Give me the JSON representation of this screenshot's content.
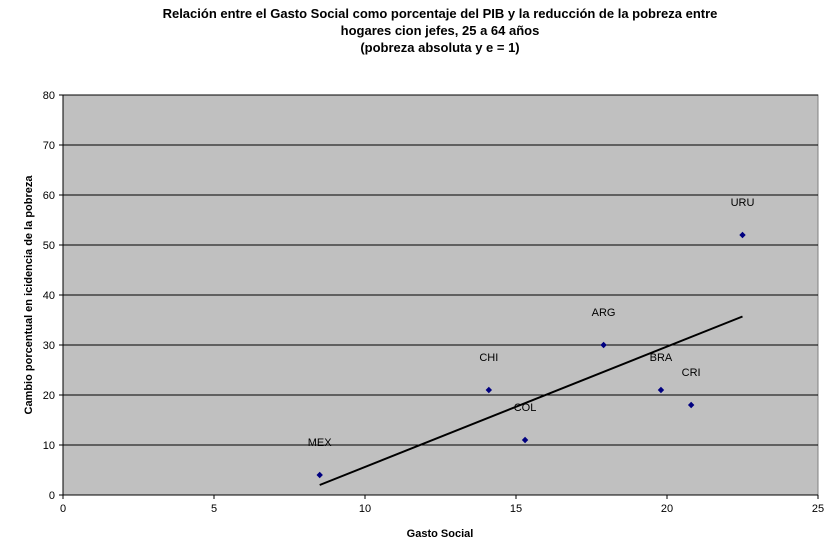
{
  "chart_data": {
    "type": "scatter",
    "title_lines": [
      "Relación entre el Gasto Social como porcentaje del PIB y la reducción de la pobreza entre",
      "hogares cion jefes, 25 a 64 años",
      "(pobreza absoluta y e = 1)"
    ],
    "xlabel": "Gasto Social",
    "ylabel": "Cambio porcentual en icidencia de la pobreza",
    "xlim": [
      0,
      25
    ],
    "ylim": [
      0,
      80
    ],
    "xticks": [
      0,
      5,
      10,
      15,
      20,
      25
    ],
    "yticks": [
      0,
      10,
      20,
      30,
      40,
      50,
      60,
      70,
      80
    ],
    "grid": "horizontal",
    "legend": "none",
    "points": [
      {
        "label": "MEX",
        "x": 8.5,
        "y": 4
      },
      {
        "label": "CHI",
        "x": 14.1,
        "y": 21
      },
      {
        "label": "COL",
        "x": 15.3,
        "y": 11
      },
      {
        "label": "ARG",
        "x": 17.9,
        "y": 30
      },
      {
        "label": "BRA",
        "x": 19.8,
        "y": 21
      },
      {
        "label": "CRI",
        "x": 20.8,
        "y": 18
      },
      {
        "label": "URU",
        "x": 22.5,
        "y": 52
      }
    ],
    "trendline": {
      "x": [
        8.5,
        22.5
      ],
      "y": [
        2,
        35.7
      ]
    },
    "colors": {
      "plot_background": "#c0c0c0",
      "gridline": "#000000",
      "marker": "#000080",
      "trendline": "#000000"
    }
  }
}
